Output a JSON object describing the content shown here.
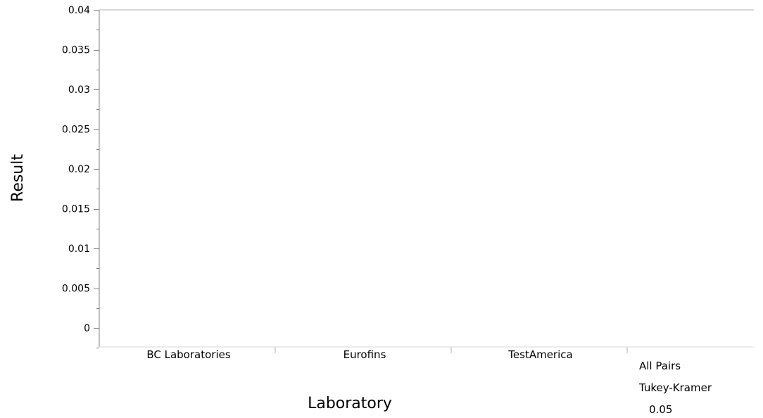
{
  "chart_data": {
    "type": "scatter",
    "title": "",
    "xlabel": "Laboratory",
    "ylabel": "Result",
    "categories": [
      "BC Laboratories",
      "Eurofins",
      "TestAmerica"
    ],
    "y_ticks": [
      "0",
      "0.005",
      "0.01",
      "0.015",
      "0.02",
      "0.025",
      "0.03",
      "0.035",
      "0.04"
    ],
    "ylim": [
      -0.0025,
      0.04
    ],
    "series": [],
    "grid": false
  },
  "comparison": {
    "line1": "All Pairs",
    "line2": "Tukey-Kramer",
    "line3": "0.05"
  },
  "colors": {
    "axis": "#808080",
    "text": "#000000"
  }
}
